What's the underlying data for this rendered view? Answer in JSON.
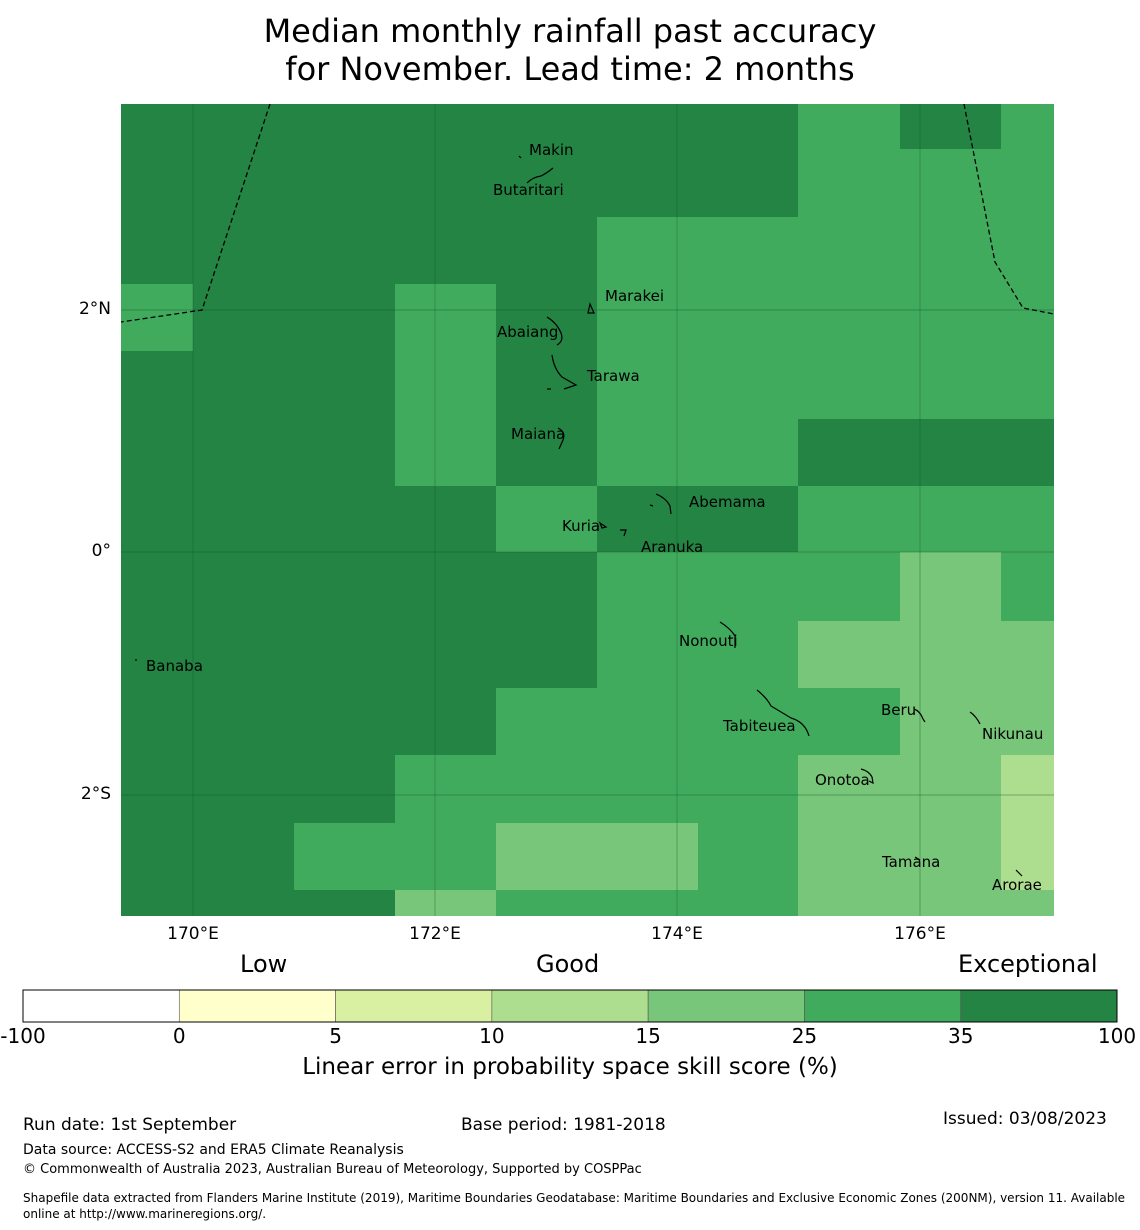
{
  "title": {
    "line1": "Median monthly rainfall past accuracy",
    "line2": "for November. Lead time: 2 months"
  },
  "map": {
    "lat_labels": [
      "2°N",
      "0°",
      "2°S"
    ],
    "lon_labels": [
      "170°E",
      "172°E",
      "174°E",
      "176°E"
    ],
    "places": [
      "Makin",
      "Butaritari",
      "Marakei",
      "Abaiang",
      "Tarawa",
      "Maiana",
      "Abemama",
      "Kuria",
      "Aranuka",
      "Banaba",
      "Nonouti",
      "Tabiteuea",
      "Beru",
      "Nikunau",
      "Onotoa",
      "Tamana",
      "Arorae"
    ],
    "skill_colors": {
      "band_35_100": "#238443",
      "band_25_35": "#41ab5d",
      "band_15_25": "#78c679",
      "band_10_15": "#addd8e"
    }
  },
  "colorbar": {
    "categories": [
      "Low",
      "Good",
      "Exceptional"
    ],
    "ticks": [
      "-100",
      "0",
      "5",
      "10",
      "15",
      "25",
      "35",
      "100"
    ],
    "colors": [
      "#ffffff",
      "#ffffcc",
      "#d9f0a3",
      "#addd8e",
      "#78c679",
      "#41ab5d",
      "#238443"
    ],
    "label": "Linear error in probability space skill score (%)"
  },
  "footer": {
    "run_date": "Run date: 1st September",
    "base_period": "Base period: 1981-2018",
    "issued": "Issued: 03/08/2023",
    "data_source": "Data source: ACCESS-S2 and ERA5 Climate Reanalysis",
    "copyright": "© Commonwealth of Australia 2023, Australian Bureau of Meteorology, Supported by COSPPac",
    "shapefile_line1": "Shapefile data extracted from Flanders Marine Institute (2019), Maritime Boundaries Geodatabase: Maritime Boundaries and Exclusive Economic Zones (200NM), version 11. Available",
    "shapefile_line2": "online at http://www.marineregions.org/."
  }
}
